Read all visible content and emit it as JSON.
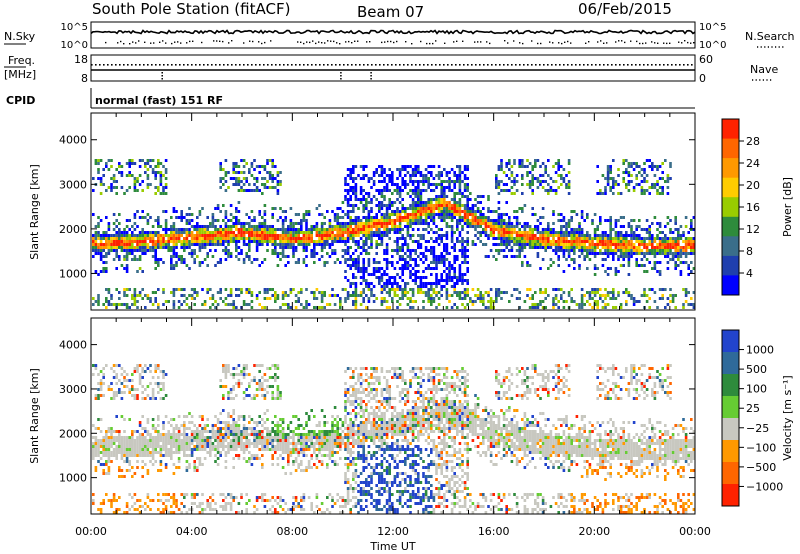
{
  "header": {
    "title": "South Pole Station (fitACF)",
    "beam": "Beam 07",
    "date": "06/Feb/2015"
  },
  "status_panels": {
    "nsky_label": "N.Sky",
    "nsearch_label": "N.Search",
    "noise_ticks": [
      "10^5",
      "10^0"
    ],
    "freq_label": "Freq.",
    "freq_unit": "[MHz]",
    "freq_ticks": [
      "18",
      "8"
    ],
    "nave_label": "Nave",
    "nave_ticks": [
      "60",
      "0"
    ],
    "cpid_label": "CPID",
    "cpid_text": "normal (fast) 151 RF"
  },
  "colorbars": {
    "power": {
      "label": "Power [dB]",
      "ticks": [
        "28",
        "24",
        "20",
        "16",
        "12",
        "8",
        "4"
      ],
      "colors": [
        "#ff2200",
        "#ff6600",
        "#ff9900",
        "#ffcc00",
        "#99cc00",
        "#2e8b3c",
        "#3a6e8a",
        "#1f3fae",
        "#0000ff"
      ]
    },
    "velocity": {
      "label": "Velocity [m s⁻¹]",
      "ticks": [
        "1000",
        "500",
        "100",
        "25",
        "−25",
        "−100",
        "−500",
        "−1000"
      ],
      "colors": [
        "#2244cc",
        "#2f6a9a",
        "#2e8b3c",
        "#66cc33",
        "#c8c8c0",
        "#ff9900",
        "#ff6600",
        "#ff2200"
      ]
    }
  },
  "chart_data": [
    {
      "type": "heatmap",
      "name": "power",
      "ylabel": "Slant Range [km]",
      "xlabel": "Time UT",
      "x_ticks": [
        "00:00",
        "04:00",
        "08:00",
        "12:00",
        "16:00",
        "20:00",
        "00:00"
      ],
      "y_ticks": [
        1000,
        2000,
        3000,
        4000
      ],
      "ylim": [
        180,
        4600
      ],
      "xlim_hours": [
        0,
        24
      ],
      "colorbar": "Power [dB]",
      "clim": [
        0,
        30
      ],
      "band_profile": [
        {
          "t": 0.0,
          "range_km": 1700
        },
        {
          "t": 2.0,
          "range_km": 1750
        },
        {
          "t": 4.0,
          "range_km": 1850
        },
        {
          "t": 6.0,
          "range_km": 1950
        },
        {
          "t": 8.0,
          "range_km": 1800
        },
        {
          "t": 10.0,
          "range_km": 1950
        },
        {
          "t": 12.0,
          "range_km": 2200
        },
        {
          "t": 14.0,
          "range_km": 2600
        },
        {
          "t": 16.0,
          "range_km": 2000
        },
        {
          "t": 18.0,
          "range_km": 1800
        },
        {
          "t": 20.0,
          "range_km": 1700
        },
        {
          "t": 22.0,
          "range_km": 1650
        },
        {
          "t": 24.0,
          "range_km": 1650
        }
      ]
    },
    {
      "type": "heatmap",
      "name": "velocity",
      "ylabel": "Slant Range [km]",
      "xlabel": "Time UT",
      "x_ticks": [
        "00:00",
        "04:00",
        "08:00",
        "12:00",
        "16:00",
        "20:00",
        "00:00"
      ],
      "y_ticks": [
        1000,
        2000,
        3000,
        4000
      ],
      "ylim": [
        180,
        4600
      ],
      "xlim_hours": [
        0,
        24
      ],
      "colorbar": "Velocity [m s⁻¹]",
      "clim": [
        -1000,
        1000
      ]
    }
  ],
  "xaxis_label": "Time UT"
}
